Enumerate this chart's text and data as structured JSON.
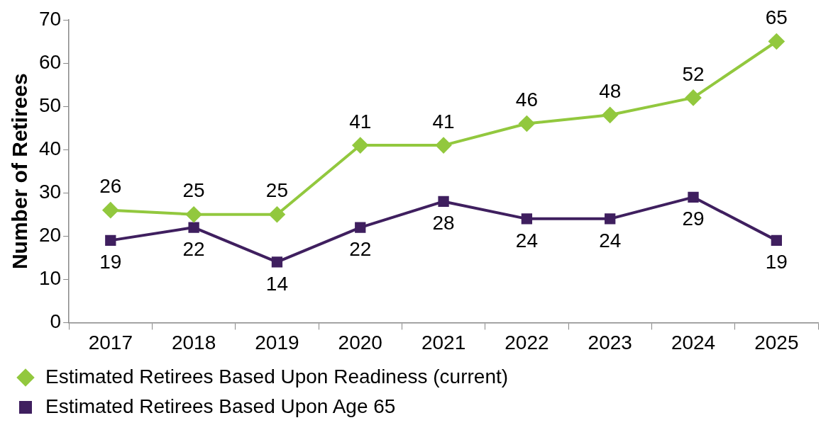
{
  "chart_data": {
    "type": "line",
    "ylabel": "Number of Retirees",
    "categories": [
      "2017",
      "2018",
      "2019",
      "2020",
      "2021",
      "2022",
      "2023",
      "2024",
      "2025"
    ],
    "series": [
      {
        "name": "Estimated Retirees Based Upon Readiness (current)",
        "color": "#92c83e",
        "marker": "diamond",
        "values": [
          26,
          25,
          25,
          41,
          41,
          46,
          48,
          52,
          65
        ]
      },
      {
        "name": "Estimated Retirees Based Upon Age 65",
        "color": "#3f1f5f",
        "marker": "square",
        "values": [
          19,
          22,
          14,
          22,
          28,
          24,
          24,
          29,
          19
        ]
      }
    ],
    "ylim": [
      0,
      70
    ],
    "yticks": [
      0,
      10,
      20,
      30,
      40,
      50,
      60,
      70
    ],
    "grid": false,
    "legend": "bottom",
    "data_labels": true,
    "line_style": "solid"
  }
}
